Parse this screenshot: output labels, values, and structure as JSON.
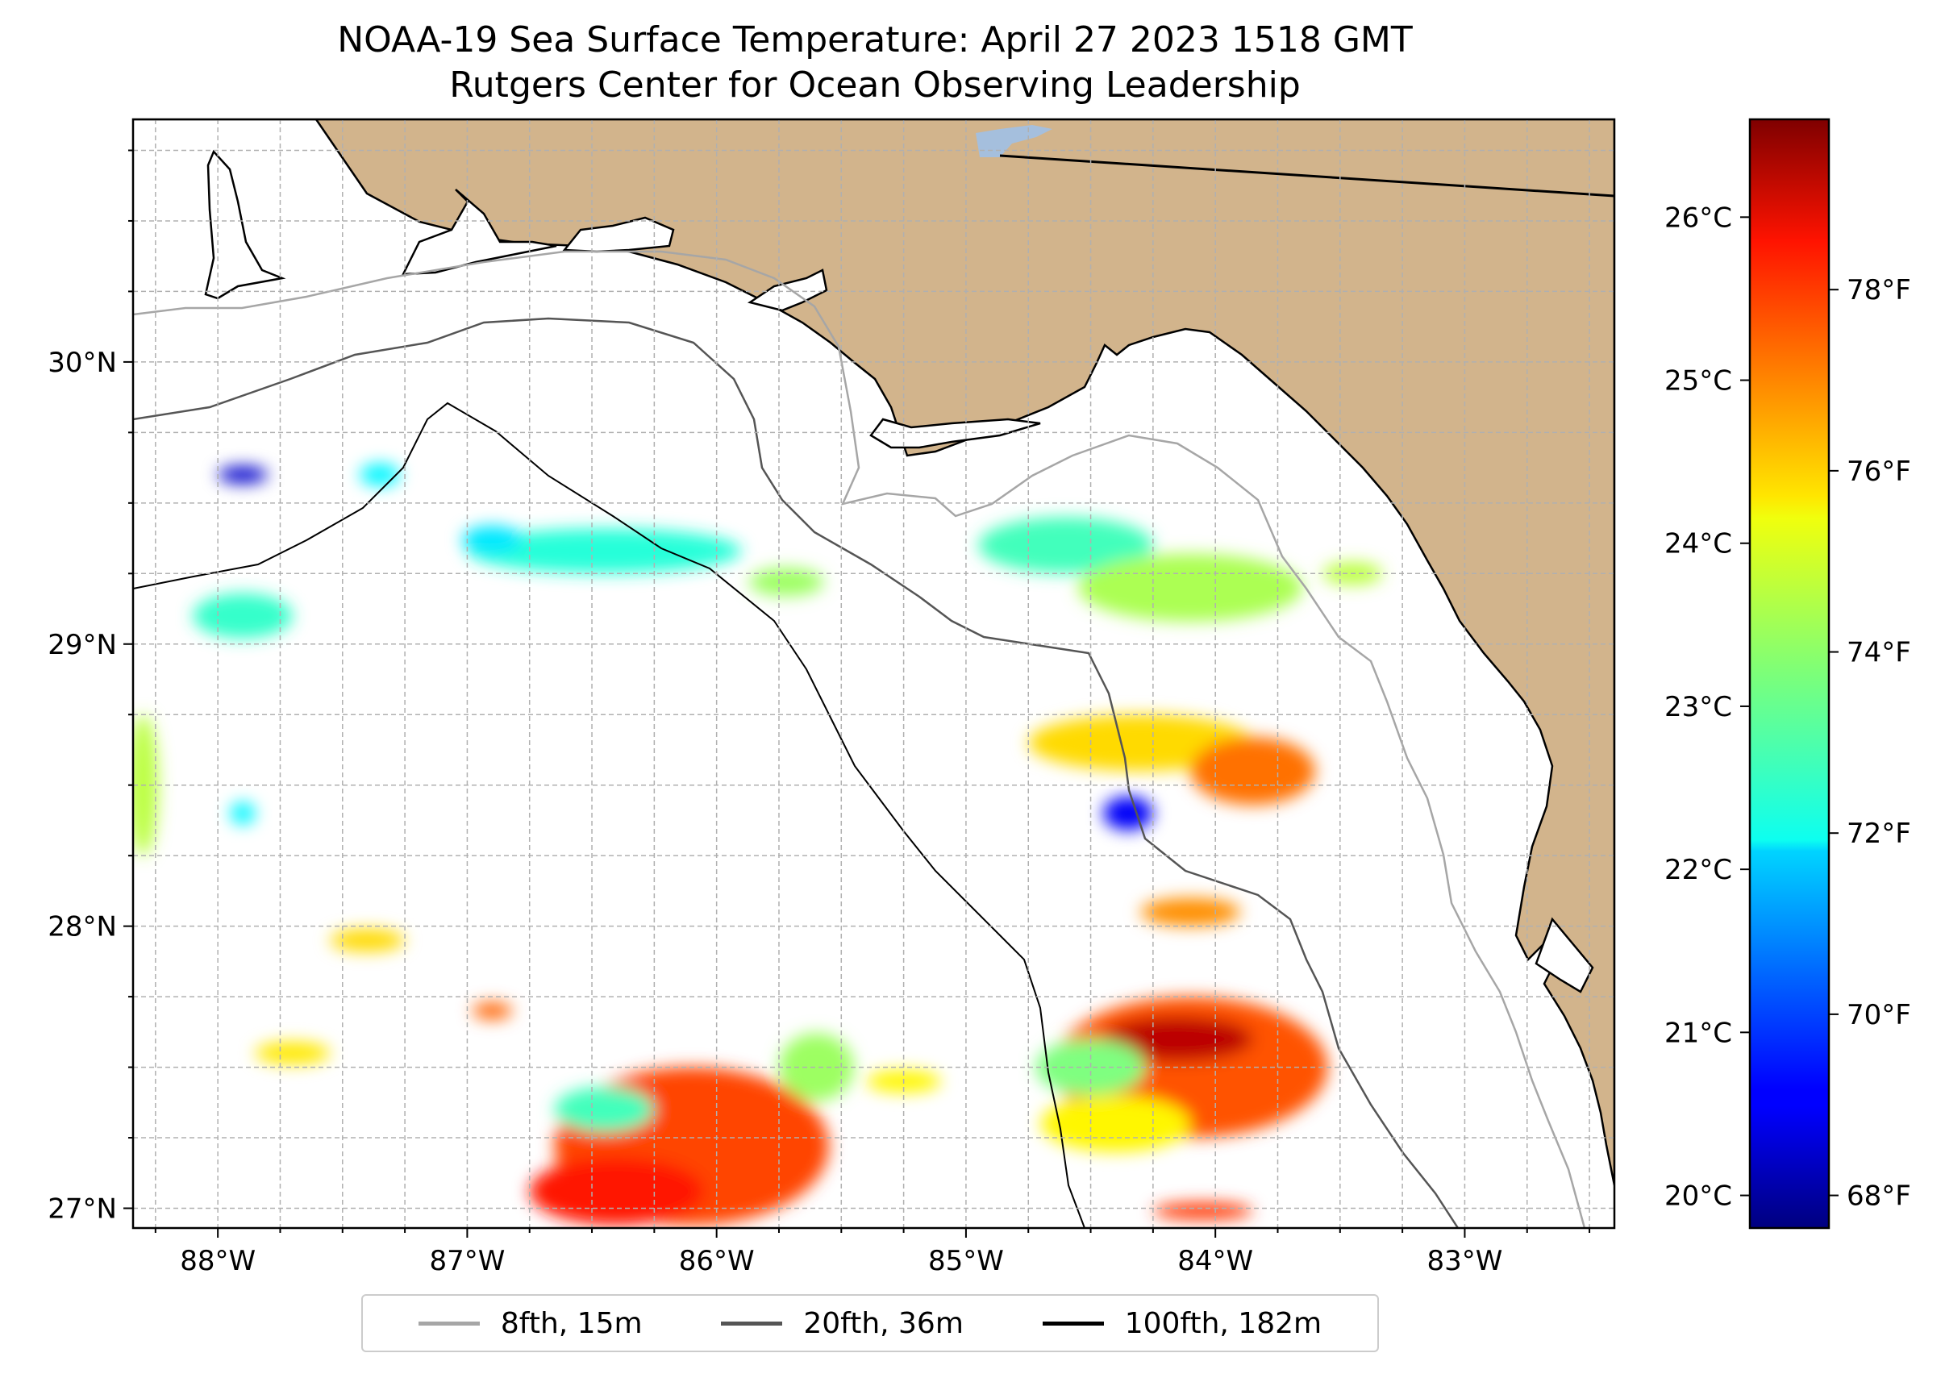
{
  "title": {
    "line1": "NOAA-19 Sea Surface Temperature: April 27 2023 1518 GMT",
    "line2": "Rutgers Center for Ocean Observing Leadership"
  },
  "map": {
    "region": "northeastern Gulf of Mexico / Florida Panhandle",
    "lon_range": [
      -88.34,
      -82.4
    ],
    "lat_range": [
      26.93,
      30.86
    ],
    "land_color": "#d2b48c",
    "water_color": "#ffffff",
    "lake_color": "#a5bfdd",
    "grid_color": "#b0b0b0"
  },
  "chart_data": {
    "type": "heatmap",
    "title": "NOAA-19 Sea Surface Temperature: April 27 2023 1518 GMT",
    "x_ticks": [
      {
        "lon": -88,
        "label": "88°W"
      },
      {
        "lon": -87,
        "label": "87°W"
      },
      {
        "lon": -86,
        "label": "86°W"
      },
      {
        "lon": -85,
        "label": "85°W"
      },
      {
        "lon": -84,
        "label": "84°W"
      },
      {
        "lon": -83,
        "label": "83°W"
      }
    ],
    "y_ticks": [
      {
        "lat": 30,
        "label": "30°N"
      },
      {
        "lat": 29,
        "label": "29°N"
      },
      {
        "lat": 28,
        "label": "28°N"
      },
      {
        "lat": 27,
        "label": "27°N"
      }
    ],
    "colorbar": {
      "colormap": "jet",
      "range_c": [
        19.8,
        26.6
      ],
      "celsius_ticks": [
        {
          "value": 20,
          "label": "20°C"
        },
        {
          "value": 21,
          "label": "21°C"
        },
        {
          "value": 22,
          "label": "22°C"
        },
        {
          "value": 23,
          "label": "23°C"
        },
        {
          "value": 24,
          "label": "24°C"
        },
        {
          "value": 25,
          "label": "25°C"
        },
        {
          "value": 26,
          "label": "26°C"
        }
      ],
      "fahrenheit_ticks": [
        {
          "value": 68,
          "label": "68°F"
        },
        {
          "value": 70,
          "label": "70°F"
        },
        {
          "value": 72,
          "label": "72°F"
        },
        {
          "value": 74,
          "label": "74°F"
        },
        {
          "value": 76,
          "label": "76°F"
        },
        {
          "value": 78,
          "label": "78°F"
        }
      ]
    },
    "sst_patches": [
      {
        "lon": -86.1,
        "lat": 27.22,
        "rx": 0.55,
        "ry": 0.28,
        "temp_c": 25.3
      },
      {
        "lon": -86.4,
        "lat": 27.06,
        "rx": 0.35,
        "ry": 0.12,
        "temp_c": 25.6
      },
      {
        "lon": -86.45,
        "lat": 27.35,
        "rx": 0.2,
        "ry": 0.08,
        "temp_c": 22.8
      },
      {
        "lon": -84.1,
        "lat": 27.5,
        "rx": 0.55,
        "ry": 0.25,
        "temp_c": 25.2
      },
      {
        "lon": -84.15,
        "lat": 27.6,
        "rx": 0.3,
        "ry": 0.08,
        "temp_c": 26.2
      },
      {
        "lon": -84.4,
        "lat": 27.3,
        "rx": 0.3,
        "ry": 0.1,
        "temp_c": 24.1
      },
      {
        "lon": -84.5,
        "lat": 27.5,
        "rx": 0.22,
        "ry": 0.1,
        "temp_c": 23.2
      },
      {
        "lon": -86.45,
        "lat": 29.33,
        "rx": 0.55,
        "ry": 0.08,
        "temp_c": 22.6
      },
      {
        "lon": -86.9,
        "lat": 29.37,
        "rx": 0.12,
        "ry": 0.05,
        "temp_c": 22.2
      },
      {
        "lon": -85.72,
        "lat": 29.22,
        "rx": 0.15,
        "ry": 0.05,
        "temp_c": 23.4
      },
      {
        "lon": -84.6,
        "lat": 29.35,
        "rx": 0.35,
        "ry": 0.1,
        "temp_c": 22.8
      },
      {
        "lon": -84.1,
        "lat": 29.2,
        "rx": 0.45,
        "ry": 0.12,
        "temp_c": 23.5
      },
      {
        "lon": -84.3,
        "lat": 28.65,
        "rx": 0.45,
        "ry": 0.1,
        "temp_c": 24.3
      },
      {
        "lon": -83.85,
        "lat": 28.55,
        "rx": 0.25,
        "ry": 0.12,
        "temp_c": 25.0
      },
      {
        "lon": -84.35,
        "lat": 28.4,
        "rx": 0.1,
        "ry": 0.06,
        "temp_c": 20.6
      },
      {
        "lon": -84.1,
        "lat": 28.05,
        "rx": 0.2,
        "ry": 0.05,
        "temp_c": 24.8
      },
      {
        "lon": -87.9,
        "lat": 29.1,
        "rx": 0.2,
        "ry": 0.08,
        "temp_c": 22.7
      },
      {
        "lon": -88.3,
        "lat": 28.5,
        "rx": 0.06,
        "ry": 0.25,
        "temp_c": 23.6
      },
      {
        "lon": -87.9,
        "lat": 28.4,
        "rx": 0.05,
        "ry": 0.04,
        "temp_c": 22.3
      },
      {
        "lon": -87.4,
        "lat": 27.95,
        "rx": 0.15,
        "ry": 0.04,
        "temp_c": 24.3
      },
      {
        "lon": -86.9,
        "lat": 27.7,
        "rx": 0.08,
        "ry": 0.03,
        "temp_c": 25.1
      },
      {
        "lon": -87.7,
        "lat": 27.55,
        "rx": 0.15,
        "ry": 0.04,
        "temp_c": 24.2
      },
      {
        "lon": -85.25,
        "lat": 27.45,
        "rx": 0.15,
        "ry": 0.04,
        "temp_c": 24.1
      },
      {
        "lon": -85.6,
        "lat": 27.5,
        "rx": 0.15,
        "ry": 0.12,
        "temp_c": 23.4
      },
      {
        "lon": -84.05,
        "lat": 26.99,
        "rx": 0.2,
        "ry": 0.03,
        "temp_c": 25.4
      },
      {
        "lon": -87.9,
        "lat": 29.6,
        "rx": 0.1,
        "ry": 0.03,
        "temp_c": 20.3
      },
      {
        "lon": -87.35,
        "lat": 29.6,
        "rx": 0.08,
        "ry": 0.04,
        "temp_c": 22.3
      },
      {
        "lon": -83.45,
        "lat": 29.25,
        "rx": 0.12,
        "ry": 0.04,
        "temp_c": 23.6
      }
    ]
  },
  "legend": {
    "items": [
      {
        "label": "8fth, 15m",
        "color": "#a6a6a6"
      },
      {
        "label": "20fth, 36m",
        "color": "#555555"
      },
      {
        "label": "100fth, 182m",
        "color": "#000000"
      }
    ]
  }
}
